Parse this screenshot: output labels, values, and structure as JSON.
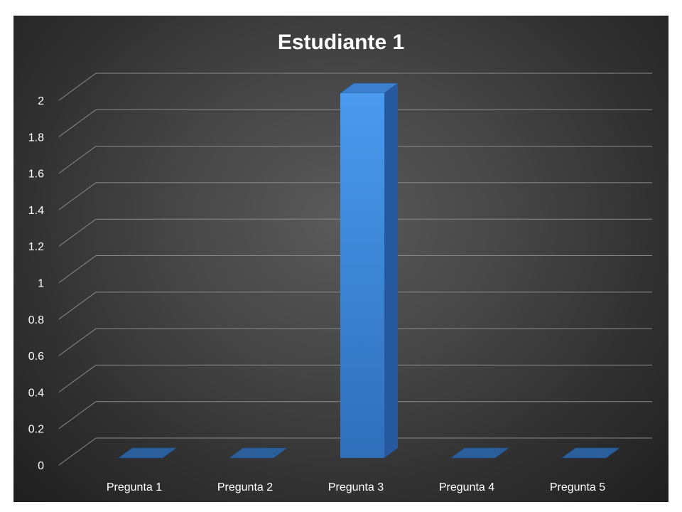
{
  "chart_data": {
    "type": "bar",
    "title": "Estudiante 1",
    "xlabel": "",
    "ylabel": "",
    "categories": [
      "Pregunta 1",
      "Pregunta 2",
      "Pregunta 3",
      "Pregunta 4",
      "Pregunta 5"
    ],
    "series": [
      {
        "values": [
          0,
          0,
          2,
          0,
          0
        ]
      }
    ],
    "ylim": [
      0,
      2
    ],
    "yticks": [
      "0",
      "0.2",
      "0.4",
      "0.6",
      "0.8",
      "1",
      "1.2",
      "1.4",
      "1.6",
      "1.8",
      "2"
    ],
    "grid": true,
    "legend": "none",
    "three_d": true,
    "bar_color": "#3b84d6",
    "background_color": "#404040"
  }
}
